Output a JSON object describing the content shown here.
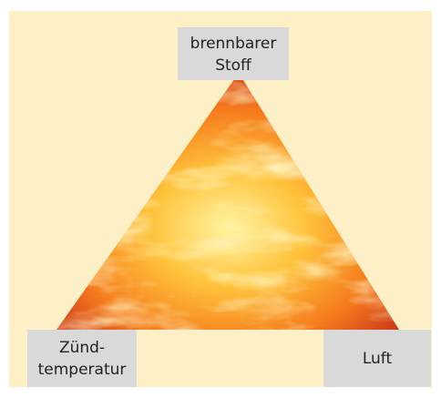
{
  "nodes": [
    {
      "label_lines": [
        "brennbarer",
        "Stoff"
      ]
    },
    {
      "label_lines": [
        "Zünd-",
        "temperatur"
      ]
    },
    {
      "label_lines": [
        "Luft"
      ]
    }
  ]
}
